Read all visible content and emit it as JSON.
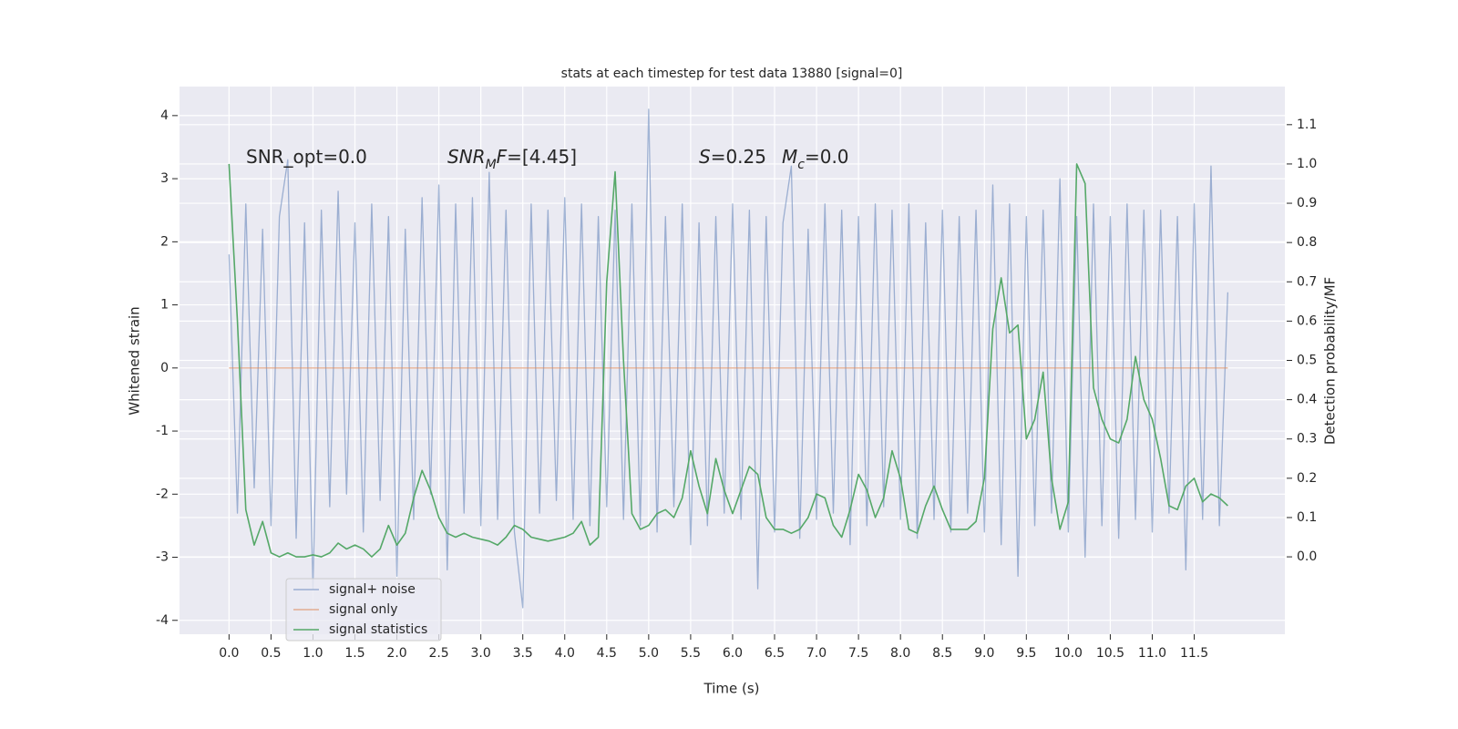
{
  "chart_data": {
    "type": "line",
    "title": "stats at each timestep for test data 13880 [signal=0]",
    "xlabel": "Time (s)",
    "ylabel": "Whitened strain",
    "y2label": "Detection probability/MF",
    "xlim": [
      -0.59,
      12.58
    ],
    "ylim": [
      -4.22,
      4.46
    ],
    "y2lim": [
      -0.197,
      1.197
    ],
    "xticks": [
      {
        "value": 0,
        "label": "0.0"
      },
      0.5,
      {
        "value": 1,
        "label": "1.0"
      },
      1.5,
      {
        "value": 2,
        "label": "2.0"
      },
      2.5,
      {
        "value": 3,
        "label": "3.0"
      },
      3.5,
      {
        "value": 4,
        "label": "4.0"
      },
      4.5,
      {
        "value": 5,
        "label": "5.0"
      },
      5.5,
      {
        "value": 6,
        "label": "6.0"
      },
      6.5,
      {
        "value": 7,
        "label": "7.0"
      },
      7.5,
      {
        "value": 8,
        "label": "8.0"
      },
      8.5,
      {
        "value": 9,
        "label": "9.0"
      },
      9.5,
      {
        "value": 10,
        "label": "10.0"
      },
      10.5,
      {
        "value": 11,
        "label": "11.0"
      },
      11.5
    ],
    "yticks": [
      -4,
      -3,
      -2,
      -1,
      0,
      1,
      2,
      3,
      4
    ],
    "y2ticks": [
      {
        "value": 0,
        "label": "0.0"
      },
      0.1,
      0.2,
      0.3,
      0.4,
      0.5,
      0.6,
      0.7,
      0.8,
      0.9,
      {
        "value": 1,
        "label": "1.0"
      },
      1.1
    ],
    "grid": true,
    "legend": "lower left",
    "annotations": [
      [
        {
          "text": "SNR_opt=0.0"
        }
      ],
      [
        {
          "text": "SNR",
          "style": "italic"
        },
        {
          "text": "M",
          "style": "sub"
        },
        {
          "text": "F",
          "style": "italic"
        },
        {
          "text": "=[4.45]"
        }
      ],
      [
        {
          "text": "S",
          "style": "italic"
        },
        {
          "text": "=0.25"
        }
      ],
      [
        {
          "text": "M",
          "style": "italic"
        },
        {
          "text": "c",
          "style": "sub"
        },
        {
          "text": "=0.0"
        }
      ]
    ],
    "x": [
      0,
      0.1,
      0.2,
      0.3,
      0.4,
      0.5,
      0.6,
      0.7,
      0.8,
      0.9,
      1,
      1.1,
      1.2,
      1.3,
      1.4,
      1.5,
      1.6,
      1.7,
      1.8,
      1.9,
      2,
      2.1,
      2.2,
      2.3,
      2.4,
      2.5,
      2.6,
      2.7,
      2.8,
      2.9,
      3,
      3.1,
      3.2,
      3.3,
      3.4,
      3.5,
      3.6,
      3.7,
      3.8,
      3.9,
      4,
      4.1,
      4.2,
      4.3,
      4.4,
      4.5,
      4.6,
      4.7,
      4.8,
      4.9,
      5,
      5.1,
      5.2,
      5.3,
      5.4,
      5.5,
      5.6,
      5.7,
      5.8,
      5.9,
      6,
      6.1,
      6.2,
      6.3,
      6.4,
      6.5,
      6.6,
      6.7,
      6.8,
      6.9,
      7,
      7.1,
      7.2,
      7.3,
      7.4,
      7.5,
      7.6,
      7.7,
      7.8,
      7.9,
      8,
      8.1,
      8.2,
      8.3,
      8.4,
      8.5,
      8.6,
      8.7,
      8.8,
      8.9,
      9,
      9.1,
      9.2,
      9.3,
      9.4,
      9.5,
      9.6,
      9.7,
      9.8,
      9.9,
      10,
      10.1,
      10.2,
      10.3,
      10.4,
      10.5,
      10.6,
      10.7,
      10.8,
      10.9,
      11,
      11.1,
      11.2,
      11.3,
      11.4,
      11.5,
      11.6,
      11.7,
      11.8,
      11.9
    ],
    "series": [
      {
        "name": "signal+ noise",
        "color": "#4c72b0",
        "axis": "y",
        "values": [
          1.8,
          -2.3,
          2.6,
          -1.9,
          2.2,
          -2.5,
          2.4,
          3.3,
          -2.7,
          2.3,
          -3.5,
          2.5,
          -2.2,
          2.8,
          -2.0,
          2.3,
          -2.6,
          2.6,
          -2.1,
          2.4,
          -3.3,
          2.2,
          -2.4,
          2.7,
          -2.0,
          2.9,
          -3.2,
          2.6,
          -2.3,
          2.7,
          -2.5,
          3.1,
          -2.4,
          2.5,
          -2.6,
          -3.8,
          2.6,
          -2.3,
          2.5,
          -2.1,
          2.7,
          -2.4,
          2.6,
          -2.5,
          2.4,
          -2.2,
          2.5,
          -2.4,
          2.6,
          -2.5,
          4.1,
          -2.6,
          2.4,
          -2.2,
          2.6,
          -2.8,
          2.3,
          -2.5,
          2.4,
          -2.3,
          2.6,
          -2.4,
          2.5,
          -3.5,
          2.4,
          -2.6,
          2.3,
          3.2,
          -2.7,
          2.2,
          -2.4,
          2.6,
          -2.3,
          2.5,
          -2.8,
          2.4,
          -2.5,
          2.6,
          -2.2,
          2.5,
          -2.4,
          2.6,
          -2.7,
          2.3,
          -2.4,
          2.5,
          -2.6,
          2.4,
          -2.3,
          2.5,
          -2.6,
          2.9,
          -2.8,
          2.6,
          -3.3,
          2.4,
          -2.5,
          2.5,
          -2.3,
          3.0,
          -2.6,
          2.4,
          -3.0,
          2.6,
          -2.5,
          2.4,
          -2.7,
          2.6,
          -2.4,
          2.5,
          -2.6,
          2.5,
          -2.3,
          2.4,
          -3.2,
          2.6,
          -2.4,
          3.2,
          -2.5,
          1.2
        ]
      },
      {
        "name": "signal only",
        "color": "#dd8452",
        "axis": "y",
        "values": [
          0,
          0,
          0,
          0,
          0,
          0,
          0,
          0,
          0,
          0,
          0,
          0,
          0,
          0,
          0,
          0,
          0,
          0,
          0,
          0,
          0,
          0,
          0,
          0,
          0,
          0,
          0,
          0,
          0,
          0,
          0,
          0,
          0,
          0,
          0,
          0,
          0,
          0,
          0,
          0,
          0,
          0,
          0,
          0,
          0,
          0,
          0,
          0,
          0,
          0,
          0,
          0,
          0,
          0,
          0,
          0,
          0,
          0,
          0,
          0,
          0,
          0,
          0,
          0,
          0,
          0,
          0,
          0,
          0,
          0,
          0,
          0,
          0,
          0,
          0,
          0,
          0,
          0,
          0,
          0,
          0,
          0,
          0,
          0,
          0,
          0,
          0,
          0,
          0,
          0,
          0,
          0,
          0,
          0,
          0,
          0,
          0,
          0,
          0,
          0,
          0,
          0,
          0,
          0,
          0,
          0,
          0,
          0,
          0,
          0,
          0,
          0,
          0,
          0,
          0,
          0,
          0,
          0,
          0,
          0
        ]
      },
      {
        "name": "signal statistics",
        "color": "#55a868",
        "axis": "y2",
        "values": [
          1.0,
          0.6,
          0.12,
          0.03,
          0.09,
          0.01,
          0.0,
          0.01,
          0.0,
          0.0,
          0.005,
          0.0,
          0.01,
          0.035,
          0.02,
          0.03,
          0.02,
          0.0,
          0.02,
          0.08,
          0.03,
          0.06,
          0.15,
          0.22,
          0.17,
          0.1,
          0.06,
          0.05,
          0.06,
          0.05,
          0.045,
          0.04,
          0.03,
          0.05,
          0.08,
          0.07,
          0.05,
          0.045,
          0.04,
          0.045,
          0.05,
          0.06,
          0.09,
          0.03,
          0.05,
          0.7,
          0.98,
          0.5,
          0.11,
          0.07,
          0.08,
          0.11,
          0.12,
          0.1,
          0.15,
          0.27,
          0.18,
          0.11,
          0.25,
          0.17,
          0.11,
          0.17,
          0.23,
          0.21,
          0.1,
          0.07,
          0.07,
          0.06,
          0.07,
          0.1,
          0.16,
          0.15,
          0.08,
          0.05,
          0.12,
          0.21,
          0.17,
          0.1,
          0.15,
          0.27,
          0.2,
          0.07,
          0.06,
          0.13,
          0.18,
          0.12,
          0.07,
          0.07,
          0.07,
          0.09,
          0.2,
          0.58,
          0.71,
          0.57,
          0.59,
          0.3,
          0.35,
          0.47,
          0.2,
          0.07,
          0.14,
          1.0,
          0.95,
          0.43,
          0.35,
          0.3,
          0.29,
          0.35,
          0.51,
          0.4,
          0.35,
          0.25,
          0.13,
          0.12,
          0.18,
          0.2,
          0.14,
          0.16,
          0.15,
          0.13
        ]
      }
    ]
  }
}
